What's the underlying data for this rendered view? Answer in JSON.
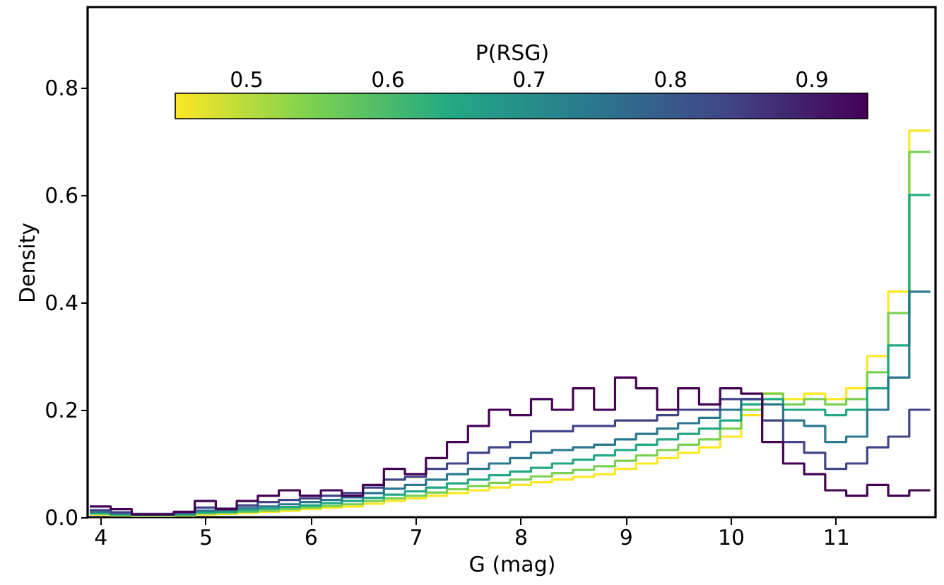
{
  "chart_data": {
    "type": "histogram",
    "xlabel": "G (mag)",
    "ylabel": "Density",
    "x2label": "P(RSG)",
    "x2lim": [
      0.388,
      0.988
    ],
    "x2ticks": [
      0.5,
      0.6,
      0.7,
      0.8,
      0.9
    ],
    "bands": [
      {
        "axis": "x2",
        "from": 0.45,
        "to": 0.94
      }
    ],
    "xlim": [
      3.88,
      11.95
    ],
    "ylim": [
      0,
      0.95
    ],
    "xticks": [
      4,
      5,
      6,
      7,
      8,
      9,
      10,
      11
    ],
    "yticks": [
      {
        "value": 0,
        "label": "0.0"
      },
      {
        "value": 0.2,
        "label": "0.2"
      },
      {
        "value": 0.4,
        "label": "0.4"
      },
      {
        "value": 0.6,
        "label": "0.6"
      },
      {
        "value": 0.8,
        "label": "0.8"
      }
    ],
    "bins": [
      3.9,
      4.1,
      4.3,
      4.5,
      4.7,
      4.9,
      5.1,
      5.3,
      5.5,
      5.7,
      5.9,
      6.1,
      6.3,
      6.5,
      6.7,
      6.9,
      7.1,
      7.3,
      7.5,
      7.7,
      7.9,
      8.1,
      8.3,
      8.5,
      8.7,
      8.9,
      9.1,
      9.3,
      9.5,
      9.7,
      9.9,
      10.1,
      10.3,
      10.5,
      10.7,
      10.9,
      11.1,
      11.3,
      11.5,
      11.7,
      11.9
    ],
    "series": [
      {
        "color": "#fde725",
        "values": [
          0.005,
          0.003,
          0.002,
          0.002,
          0.003,
          0.005,
          0.006,
          0.008,
          0.01,
          0.012,
          0.015,
          0.018,
          0.02,
          0.025,
          0.03,
          0.035,
          0.04,
          0.045,
          0.05,
          0.055,
          0.06,
          0.065,
          0.07,
          0.075,
          0.08,
          0.09,
          0.1,
          0.11,
          0.12,
          0.13,
          0.15,
          0.19,
          0.23,
          0.22,
          0.23,
          0.22,
          0.24,
          0.3,
          0.42,
          0.72
        ]
      },
      {
        "color": "#7ad151",
        "values": [
          0.006,
          0.004,
          0.003,
          0.003,
          0.004,
          0.007,
          0.008,
          0.01,
          0.012,
          0.015,
          0.018,
          0.021,
          0.024,
          0.03,
          0.035,
          0.04,
          0.046,
          0.052,
          0.058,
          0.064,
          0.07,
          0.076,
          0.082,
          0.088,
          0.095,
          0.105,
          0.115,
          0.125,
          0.135,
          0.145,
          0.165,
          0.2,
          0.23,
          0.21,
          0.22,
          0.21,
          0.22,
          0.27,
          0.38,
          0.68
        ]
      },
      {
        "color": "#22a884",
        "values": [
          0.008,
          0.005,
          0.004,
          0.004,
          0.005,
          0.009,
          0.01,
          0.013,
          0.016,
          0.019,
          0.022,
          0.026,
          0.03,
          0.036,
          0.042,
          0.048,
          0.055,
          0.063,
          0.07,
          0.078,
          0.085,
          0.092,
          0.1,
          0.107,
          0.115,
          0.125,
          0.135,
          0.145,
          0.155,
          0.165,
          0.18,
          0.21,
          0.22,
          0.2,
          0.2,
          0.19,
          0.2,
          0.24,
          0.32,
          0.6
        ]
      },
      {
        "color": "#2a788e",
        "values": [
          0.01,
          0.007,
          0.005,
          0.005,
          0.007,
          0.012,
          0.013,
          0.017,
          0.02,
          0.024,
          0.028,
          0.032,
          0.037,
          0.045,
          0.053,
          0.06,
          0.07,
          0.08,
          0.09,
          0.1,
          0.11,
          0.12,
          0.125,
          0.13,
          0.135,
          0.145,
          0.155,
          0.165,
          0.175,
          0.185,
          0.2,
          0.22,
          0.21,
          0.18,
          0.17,
          0.14,
          0.15,
          0.2,
          0.26,
          0.42
        ]
      },
      {
        "color": "#414487",
        "values": [
          0.013,
          0.009,
          0.006,
          0.006,
          0.009,
          0.018,
          0.016,
          0.022,
          0.028,
          0.032,
          0.035,
          0.04,
          0.045,
          0.055,
          0.07,
          0.075,
          0.09,
          0.1,
          0.12,
          0.13,
          0.14,
          0.16,
          0.16,
          0.17,
          0.17,
          0.18,
          0.18,
          0.19,
          0.2,
          0.2,
          0.22,
          0.22,
          0.18,
          0.14,
          0.12,
          0.09,
          0.1,
          0.13,
          0.15,
          0.2
        ]
      },
      {
        "color": "#440154",
        "values": [
          0.02,
          0.015,
          0.005,
          0.005,
          0.01,
          0.03,
          0.015,
          0.03,
          0.04,
          0.05,
          0.04,
          0.05,
          0.04,
          0.06,
          0.09,
          0.08,
          0.11,
          0.14,
          0.17,
          0.2,
          0.19,
          0.22,
          0.2,
          0.24,
          0.2,
          0.26,
          0.24,
          0.2,
          0.24,
          0.21,
          0.24,
          0.23,
          0.14,
          0.1,
          0.08,
          0.05,
          0.04,
          0.06,
          0.04,
          0.05
        ]
      }
    ]
  }
}
